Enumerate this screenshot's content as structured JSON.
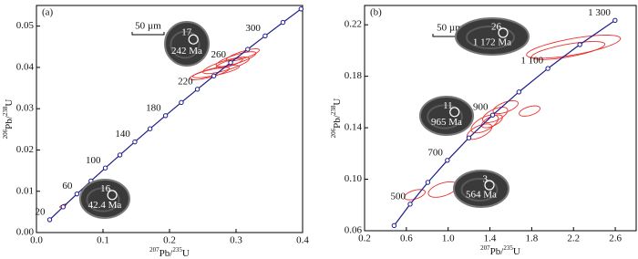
{
  "chart_data": [
    {
      "type": "concordia",
      "panel_label": "(a)",
      "scale_bar": "50 µm",
      "xlabel": [
        {
          "text": "207",
          "sup": true
        },
        {
          "text": "Pb/"
        },
        {
          "text": "235",
          "sup": true
        },
        {
          "text": "U"
        }
      ],
      "ylabel": [
        {
          "text": "206",
          "sup": true
        },
        {
          "text": "Pb/"
        },
        {
          "text": "238",
          "sup": true
        },
        {
          "text": "U"
        }
      ],
      "xlim": [
        0,
        0.4
      ],
      "ylim": [
        0,
        0.055
      ],
      "xticks": [
        {
          "value": 0,
          "label": "0.0"
        },
        0.1,
        0.2,
        0.3,
        0.4
      ],
      "yticks": [
        {
          "value": 0,
          "label": "0.00"
        },
        0.01,
        0.02,
        0.03,
        0.04,
        0.05
      ],
      "curve_color": "#1c1c8a",
      "ellipse_color": "#e8322f",
      "concordia": {
        "x": [
          0.019892,
          0.04018,
          0.060872,
          0.081975,
          0.103497,
          0.12545,
          0.147842,
          0.170681,
          0.193977,
          0.21771,
          0.241917,
          0.266627,
          0.291837,
          0.31753,
          0.343732,
          0.370443,
          0.397686
        ],
        "y": [
          0.003107,
          0.006225,
          0.009351,
          0.012487,
          0.015633,
          0.018789,
          0.021955,
          0.025131,
          0.028316,
          0.031511,
          0.034717,
          0.037932,
          0.041157,
          0.044392,
          0.047638,
          0.050893,
          0.054158
        ],
        "labels": [
          "20",
          null,
          "60",
          null,
          "100",
          null,
          "140",
          null,
          "180",
          null,
          "220",
          null,
          "260",
          null,
          "300",
          null,
          null
        ]
      },
      "ellipses": [
        {
          "x": 0.285,
          "y": 0.0405,
          "dx": 0.035,
          "dy": 0.002,
          "rho": 0.8
        },
        {
          "x": 0.3,
          "y": 0.042,
          "dx": 0.03,
          "dy": 0.0018,
          "rho": 0.8
        },
        {
          "x": 0.27,
          "y": 0.039,
          "dx": 0.035,
          "dy": 0.0015,
          "rho": 0.8
        },
        {
          "x": 0.26,
          "y": 0.0385,
          "dx": 0.03,
          "dy": 0.0015,
          "rho": 0.8
        },
        {
          "x": 0.31,
          "y": 0.043,
          "dx": 0.025,
          "dy": 0.0015,
          "rho": 0.8
        },
        {
          "x": 0.29,
          "y": 0.041,
          "dx": 0.02,
          "dy": 0.0012,
          "rho": 0.8
        },
        {
          "x": 0.04,
          "y": 0.0065,
          "dx": 0.005,
          "dy": 0.0004,
          "rho": 0.8
        }
      ],
      "grains": [
        {
          "spot": "17",
          "age": "242 Ma"
        },
        {
          "spot": "16",
          "age": "42.4 Ma"
        }
      ]
    },
    {
      "type": "concordia",
      "panel_label": "(b)",
      "scale_bar": "50 µm",
      "xlabel": [
        {
          "text": "207",
          "sup": true
        },
        {
          "text": "Pb/"
        },
        {
          "text": "235",
          "sup": true
        },
        {
          "text": "U"
        }
      ],
      "ylabel": [
        {
          "text": "206",
          "sup": true
        },
        {
          "text": "Pb/"
        },
        {
          "text": "238",
          "sup": true
        },
        {
          "text": "U"
        }
      ],
      "xlim": [
        0.2,
        2.8
      ],
      "ylim": [
        0.06,
        0.235
      ],
      "xticks": [
        0.2,
        0.6,
        {
          "value": 1,
          "label": "1.0"
        },
        1.4,
        1.8,
        2.2,
        2.6
      ],
      "yticks": [
        0.06,
        {
          "value": 0.1,
          "label": "0.10"
        },
        0.14,
        0.18,
        0.22
      ],
      "curve_color": "#1c1c8a",
      "ellipse_color": "#e8322f",
      "concordia": {
        "x": [
          0.48278,
          0.6363,
          0.8056,
          0.99254,
          1.19868,
          1.42634,
          1.67738,
          1.95457,
          2.26034,
          2.59778
        ],
        "y": [
          0.064016,
          0.08065,
          0.097544,
          0.114702,
          0.13213,
          0.149828,
          0.1678,
          0.186053,
          0.20459,
          0.22342
        ],
        "labels": [
          null,
          "500",
          null,
          "700",
          null,
          "900",
          null,
          "1 100",
          null,
          "1 300"
        ]
      },
      "ellipses": [
        {
          "x": 2.2,
          "y": 0.203,
          "dx": 0.45,
          "dy": 0.009,
          "rho": 0.7
        },
        {
          "x": 2.15,
          "y": 0.2,
          "dx": 0.35,
          "dy": 0.007,
          "rho": 0.7
        },
        {
          "x": 0.95,
          "y": 0.092,
          "dx": 0.14,
          "dy": 0.006,
          "rho": 0.5
        },
        {
          "x": 0.68,
          "y": 0.088,
          "dx": 0.1,
          "dy": 0.004,
          "rho": 0.5
        },
        {
          "x": 1.35,
          "y": 0.143,
          "dx": 0.13,
          "dy": 0.007,
          "rho": 0.6
        },
        {
          "x": 1.3,
          "y": 0.137,
          "dx": 0.12,
          "dy": 0.006,
          "rho": 0.6
        },
        {
          "x": 1.45,
          "y": 0.15,
          "dx": 0.12,
          "dy": 0.006,
          "rho": 0.6
        },
        {
          "x": 1.55,
          "y": 0.156,
          "dx": 0.12,
          "dy": 0.005,
          "rho": 0.6
        },
        {
          "x": 1.78,
          "y": 0.153,
          "dx": 0.1,
          "dy": 0.004,
          "rho": 0.5
        },
        {
          "x": 1.42,
          "y": 0.145,
          "dx": 0.1,
          "dy": 0.005,
          "rho": 0.6
        }
      ],
      "grains": [
        {
          "spot": "26",
          "age": "1 172 Ma"
        },
        {
          "spot": "11",
          "age": "965 Ma"
        },
        {
          "spot": "3",
          "age": "564 Ma"
        }
      ]
    }
  ]
}
